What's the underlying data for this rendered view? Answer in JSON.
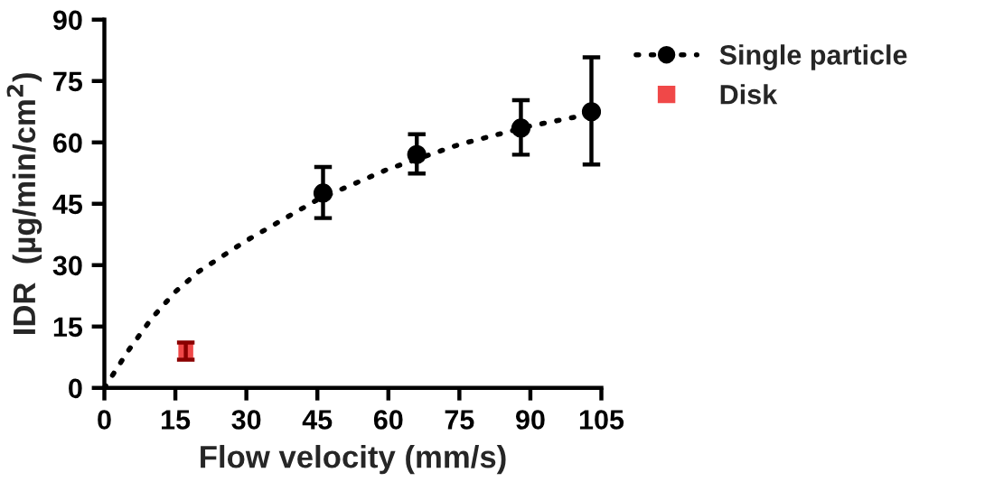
{
  "chart_data": {
    "type": "scatter",
    "xlabel": "Flow velocity (mm/s)",
    "ylabel": "IDR  (µg/min/cm$^{2}$)",
    "xlim": [
      0,
      105
    ],
    "xticks": [
      0,
      15,
      30,
      45,
      60,
      75,
      90,
      105
    ],
    "ylim": [
      0,
      90
    ],
    "yticks": [
      0,
      15,
      30,
      45,
      60,
      75,
      90
    ],
    "legend": "top right",
    "grid": false,
    "series": [
      {
        "type": "line",
        "x": [
          0,
          5,
          10,
          15,
          20,
          30,
          45,
          60,
          75,
          90,
          103
        ],
        "values": [
          0,
          9,
          17,
          23.5,
          28.5,
          36,
          46,
          53.5,
          59.5,
          64,
          67
        ],
        "color": "#000000",
        "line_style": "dotted",
        "marker": "none"
      },
      {
        "name": "Single particle",
        "x": [
          46.2,
          66.0,
          88.0,
          102.9
        ],
        "values": [
          47.6,
          57.0,
          63.5,
          67.5
        ],
        "errors": [
          [
            41.5,
            54.0
          ],
          [
            52.4,
            62.0
          ],
          [
            57.0,
            70.3
          ],
          [
            54.6,
            80.8
          ]
        ],
        "color": "#000000",
        "marker": "circle",
        "line_style": "dotted"
      },
      {
        "name": "Disk",
        "x": [
          17.2
        ],
        "values": [
          9.1
        ],
        "errors": [
          [
            6.9,
            11.1
          ]
        ],
        "color": "#f04848",
        "marker": "square"
      }
    ]
  }
}
